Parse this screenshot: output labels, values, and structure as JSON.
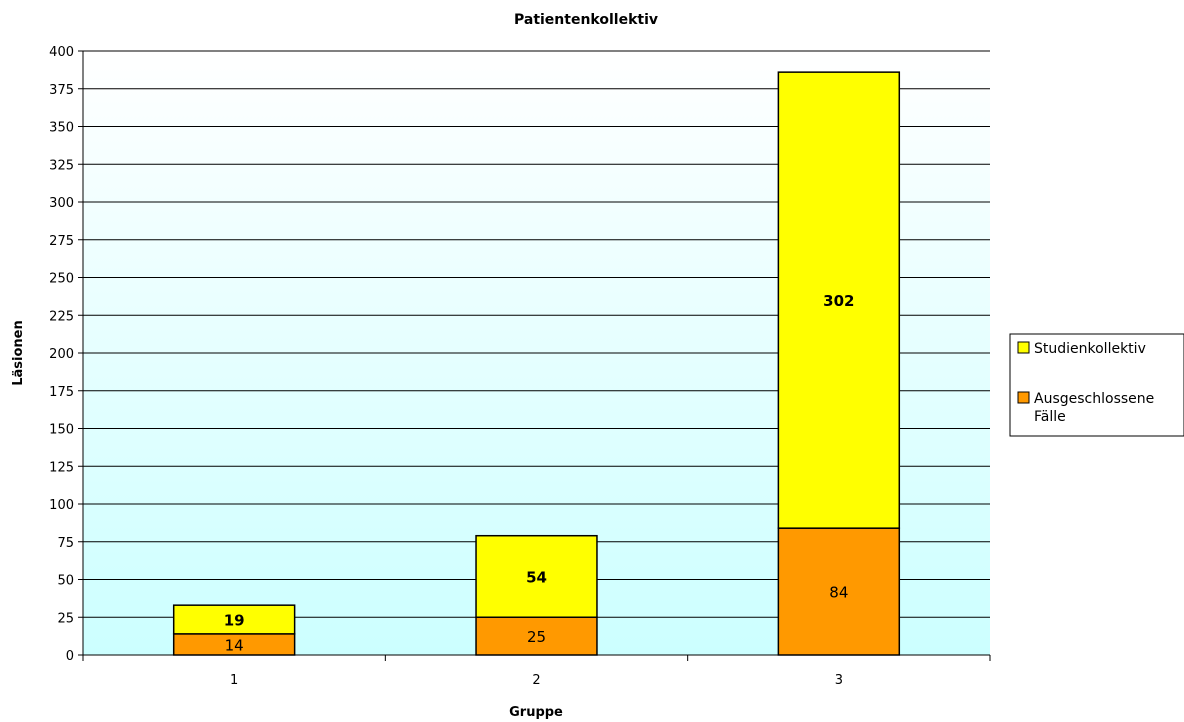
{
  "chart_data": {
    "type": "bar",
    "stacked": true,
    "title": "Patientenkollektiv",
    "xlabel": "Gruppe",
    "ylabel": "Läsionen",
    "categories": [
      "1",
      "2",
      "3"
    ],
    "series": [
      {
        "name": "Ausgeschlossene Fälle",
        "values": [
          14,
          25,
          84
        ],
        "color": "#ff9900",
        "label_bold": false
      },
      {
        "name": "Studienkollektiv",
        "values": [
          19,
          54,
          302
        ],
        "color": "#ffff00",
        "label_bold": true
      }
    ],
    "ylim": [
      0,
      400
    ],
    "yticks": [
      0,
      25,
      50,
      75,
      100,
      125,
      150,
      175,
      200,
      225,
      250,
      275,
      300,
      325,
      350,
      375,
      400
    ],
    "grid": true,
    "legend_position": "right",
    "legend": [
      {
        "label": "Studienkollektiv",
        "color": "#ffff00"
      },
      {
        "label": "Ausgeschlossene Fälle",
        "color": "#ff9900"
      }
    ],
    "background_gradient": [
      "#ffffff",
      "#ccffff"
    ]
  }
}
